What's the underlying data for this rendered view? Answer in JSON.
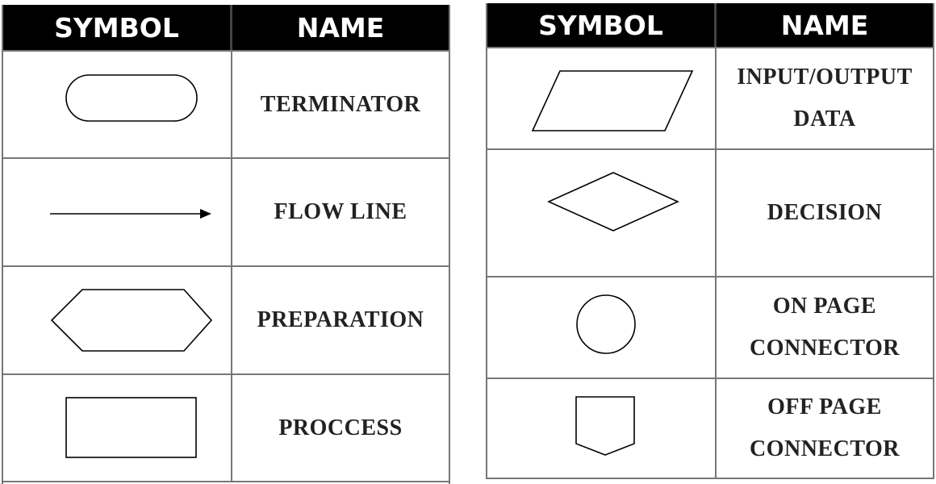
{
  "tables": [
    {
      "header": {
        "symbol": "SYMBOL",
        "name": "NAME"
      },
      "rows": [
        {
          "shape": "terminator",
          "name": "TERMINATOR"
        },
        {
          "shape": "flow-line",
          "name": "FLOW LINE"
        },
        {
          "shape": "preparation",
          "name": "PREPARATION"
        },
        {
          "shape": "process",
          "name": "PROCCESS"
        }
      ]
    },
    {
      "header": {
        "symbol": "SYMBOL",
        "name": "NAME"
      },
      "rows": [
        {
          "shape": "input-output",
          "name": "INPUT/OUTPUT\nDATA"
        },
        {
          "shape": "decision",
          "name": "DECISION"
        },
        {
          "shape": "on-page-connector",
          "name": "ON PAGE\nCONNECTOR"
        },
        {
          "shape": "off-page-connector",
          "name": "OFF PAGE\nCONNECTOR"
        }
      ]
    }
  ]
}
